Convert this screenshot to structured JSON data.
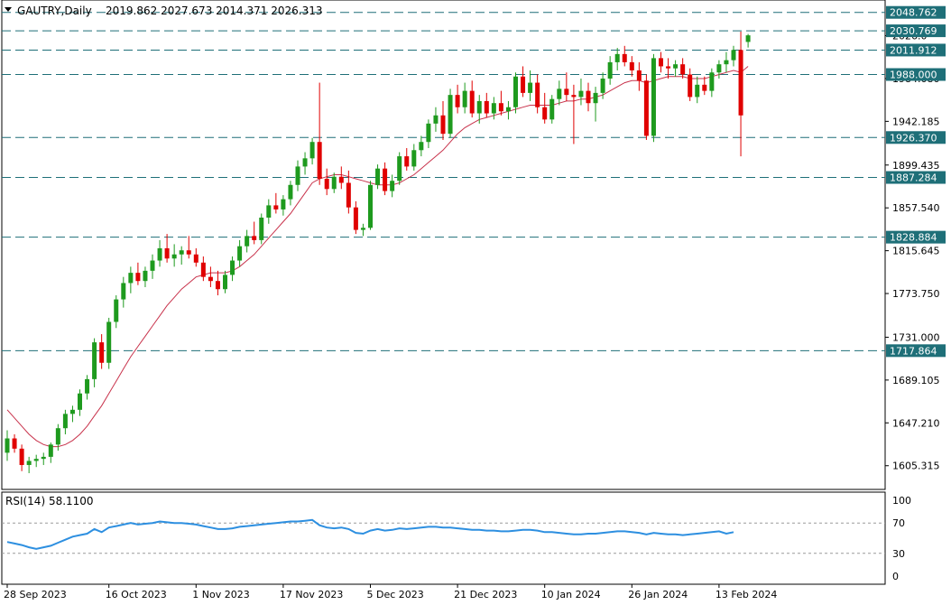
{
  "header": {
    "symbol_label": "GAUTRY,Daily",
    "ohlc": "2019.862 2027.673 2014.371 2026.313",
    "menu_icon": "triangle-down-icon"
  },
  "rsi_label": "RSI(14) 58.1100",
  "colors": {
    "bull": "#1e9a1e",
    "bear": "#e00000",
    "ma": "#c8324b",
    "rsi": "#2d8fe0",
    "level_line": "#1e6f78",
    "level_box": "#1e6f78"
  },
  "chart_data": [
    {
      "type": "candlestick",
      "title": "GAUTRY,Daily",
      "ylim": [
        1583,
        2060
      ],
      "price_ticks": [
        "1605.315",
        "1647.210",
        "1689.105",
        "1731.000",
        "1773.750",
        "1815.645",
        "1857.540",
        "1899.435",
        "1942.185",
        "1984.080",
        "2026.0"
      ],
      "date_labels": [
        {
          "i": 0,
          "label": "28 Sep 2023"
        },
        {
          "i": 14,
          "label": "16 Oct 2023"
        },
        {
          "i": 26,
          "label": "1 Nov 2023"
        },
        {
          "i": 38,
          "label": "17 Nov 2023"
        },
        {
          "i": 50,
          "label": "5 Dec 2023"
        },
        {
          "i": 62,
          "label": "21 Dec 2023"
        },
        {
          "i": 74,
          "label": "10 Jan 2024"
        },
        {
          "i": 86,
          "label": "26 Jan 2024"
        },
        {
          "i": 98,
          "label": "13 Feb 2024"
        }
      ],
      "levels": [
        "2048.762",
        "2030.769",
        "2011.912",
        "1988.000",
        "1926.370",
        "1887.284",
        "1828.884",
        "1717.864"
      ],
      "candles": [
        [
          1618,
          1640,
          1610,
          1632
        ],
        [
          1632,
          1636,
          1618,
          1622
        ],
        [
          1622,
          1626,
          1600,
          1606
        ],
        [
          1606,
          1614,
          1598,
          1610
        ],
        [
          1610,
          1616,
          1604,
          1612
        ],
        [
          1612,
          1618,
          1606,
          1614
        ],
        [
          1614,
          1628,
          1608,
          1626
        ],
        [
          1626,
          1646,
          1620,
          1642
        ],
        [
          1642,
          1660,
          1636,
          1656
        ],
        [
          1656,
          1664,
          1648,
          1660
        ],
        [
          1660,
          1680,
          1654,
          1676
        ],
        [
          1676,
          1694,
          1670,
          1690
        ],
        [
          1690,
          1730,
          1682,
          1726
        ],
        [
          1726,
          1734,
          1700,
          1706
        ],
        [
          1706,
          1750,
          1700,
          1746
        ],
        [
          1746,
          1772,
          1740,
          1768
        ],
        [
          1768,
          1790,
          1760,
          1784
        ],
        [
          1784,
          1800,
          1774,
          1794
        ],
        [
          1794,
          1804,
          1782,
          1786
        ],
        [
          1786,
          1800,
          1780,
          1796
        ],
        [
          1796,
          1812,
          1788,
          1806
        ],
        [
          1806,
          1826,
          1800,
          1818
        ],
        [
          1818,
          1832,
          1804,
          1808
        ],
        [
          1808,
          1822,
          1800,
          1812
        ],
        [
          1812,
          1820,
          1802,
          1816
        ],
        [
          1816,
          1830,
          1808,
          1812
        ],
        [
          1812,
          1818,
          1800,
          1804
        ],
        [
          1804,
          1810,
          1786,
          1790
        ],
        [
          1790,
          1800,
          1780,
          1786
        ],
        [
          1786,
          1796,
          1772,
          1778
        ],
        [
          1778,
          1796,
          1774,
          1792
        ],
        [
          1792,
          1810,
          1786,
          1806
        ],
        [
          1806,
          1826,
          1800,
          1820
        ],
        [
          1820,
          1836,
          1814,
          1830
        ],
        [
          1830,
          1844,
          1822,
          1826
        ],
        [
          1826,
          1852,
          1822,
          1848
        ],
        [
          1848,
          1866,
          1842,
          1860
        ],
        [
          1860,
          1872,
          1852,
          1856
        ],
        [
          1856,
          1870,
          1850,
          1866
        ],
        [
          1866,
          1884,
          1860,
          1880
        ],
        [
          1880,
          1904,
          1874,
          1898
        ],
        [
          1898,
          1912,
          1890,
          1906
        ],
        [
          1906,
          1926,
          1900,
          1922
        ],
        [
          1922,
          1980,
          1880,
          1886
        ],
        [
          1886,
          1896,
          1870,
          1876
        ],
        [
          1876,
          1892,
          1872,
          1888
        ],
        [
          1888,
          1898,
          1876,
          1882
        ],
        [
          1882,
          1894,
          1852,
          1858
        ],
        [
          1858,
          1864,
          1832,
          1836
        ],
        [
          1836,
          1842,
          1830,
          1838
        ],
        [
          1838,
          1884,
          1836,
          1880
        ],
        [
          1880,
          1900,
          1876,
          1896
        ],
        [
          1896,
          1902,
          1870,
          1874
        ],
        [
          1874,
          1890,
          1868,
          1884
        ],
        [
          1884,
          1912,
          1880,
          1908
        ],
        [
          1908,
          1916,
          1894,
          1898
        ],
        [
          1898,
          1920,
          1894,
          1914
        ],
        [
          1914,
          1928,
          1908,
          1922
        ],
        [
          1922,
          1944,
          1916,
          1940
        ],
        [
          1940,
          1956,
          1932,
          1948
        ],
        [
          1948,
          1962,
          1924,
          1930
        ],
        [
          1930,
          1974,
          1926,
          1968
        ],
        [
          1968,
          1978,
          1950,
          1956
        ],
        [
          1956,
          1980,
          1950,
          1972
        ],
        [
          1972,
          1982,
          1946,
          1950
        ],
        [
          1950,
          1968,
          1940,
          1962
        ],
        [
          1962,
          1970,
          1946,
          1950
        ],
        [
          1950,
          1966,
          1944,
          1960
        ],
        [
          1960,
          1972,
          1948,
          1952
        ],
        [
          1952,
          1962,
          1944,
          1956
        ],
        [
          1956,
          1990,
          1950,
          1986
        ],
        [
          1986,
          1996,
          1966,
          1970
        ],
        [
          1970,
          1992,
          1962,
          1980
        ],
        [
          1980,
          1988,
          1950,
          1956
        ],
        [
          1956,
          1970,
          1940,
          1944
        ],
        [
          1944,
          1968,
          1940,
          1964
        ],
        [
          1964,
          1982,
          1958,
          1974
        ],
        [
          1974,
          1990,
          1962,
          1968
        ],
        [
          1968,
          1978,
          1920,
          1966
        ],
        [
          1966,
          1984,
          1958,
          1972
        ],
        [
          1972,
          1980,
          1952,
          1960
        ],
        [
          1960,
          1976,
          1942,
          1970
        ],
        [
          1970,
          1990,
          1964,
          1984
        ],
        [
          1984,
          2006,
          1978,
          2000
        ],
        [
          2000,
          2014,
          1992,
          2008
        ],
        [
          2008,
          2016,
          1996,
          2000
        ],
        [
          2000,
          2006,
          1986,
          1992
        ],
        [
          1992,
          2000,
          1972,
          1982
        ],
        [
          1982,
          1988,
          1924,
          1928
        ],
        [
          1928,
          2008,
          1922,
          2004
        ],
        [
          2004,
          2010,
          1990,
          1996
        ],
        [
          1996,
          2004,
          1984,
          1994
        ],
        [
          1994,
          2002,
          1986,
          1998
        ],
        [
          1998,
          2004,
          1984,
          1988
        ],
        [
          1988,
          1994,
          1962,
          1966
        ],
        [
          1966,
          1986,
          1960,
          1978
        ],
        [
          1978,
          1986,
          1968,
          1972
        ],
        [
          1972,
          1994,
          1966,
          1990
        ],
        [
          1990,
          2002,
          1984,
          1998
        ],
        [
          1998,
          2010,
          1990,
          2002
        ],
        [
          2002,
          2016,
          1996,
          2012
        ],
        [
          2012,
          2030,
          1908,
          1948
        ],
        [
          2019.862,
          2027.673,
          2014.371,
          2026.313
        ]
      ],
      "ma": [
        1660,
        1652,
        1644,
        1636,
        1630,
        1626,
        1624,
        1624,
        1626,
        1630,
        1636,
        1644,
        1654,
        1664,
        1676,
        1688,
        1700,
        1712,
        1722,
        1732,
        1742,
        1752,
        1762,
        1770,
        1778,
        1784,
        1790,
        1792,
        1794,
        1794,
        1794,
        1796,
        1800,
        1806,
        1812,
        1820,
        1828,
        1836,
        1844,
        1852,
        1862,
        1872,
        1882,
        1886,
        1888,
        1890,
        1890,
        1888,
        1886,
        1884,
        1882,
        1880,
        1880,
        1880,
        1882,
        1886,
        1890,
        1896,
        1902,
        1908,
        1914,
        1922,
        1930,
        1936,
        1940,
        1944,
        1946,
        1948,
        1950,
        1952,
        1954,
        1956,
        1958,
        1958,
        1958,
        1958,
        1960,
        1962,
        1962,
        1964,
        1964,
        1966,
        1968,
        1972,
        1976,
        1980,
        1982,
        1982,
        1980,
        1982,
        1984,
        1986,
        1986,
        1986,
        1984,
        1984,
        1984,
        1986,
        1988,
        1990,
        1992,
        1990,
        1996
      ]
    },
    {
      "type": "line",
      "title": "RSI(14) 58.1100",
      "ylim": [
        0,
        100
      ],
      "ticks": [
        "100",
        "70",
        "30",
        "0"
      ],
      "levels": [
        70,
        30
      ],
      "values": [
        45,
        43,
        41,
        38,
        36,
        38,
        40,
        44,
        48,
        52,
        54,
        56,
        62,
        58,
        64,
        66,
        68,
        70,
        68,
        69,
        70,
        72,
        71,
        70,
        70,
        69,
        68,
        66,
        64,
        62,
        62,
        63,
        65,
        66,
        67,
        68,
        69,
        70,
        71,
        72,
        72,
        73,
        74,
        67,
        64,
        63,
        64,
        62,
        57,
        56,
        60,
        62,
        60,
        61,
        63,
        62,
        63,
        64,
        65,
        65,
        64,
        64,
        63,
        62,
        61,
        61,
        60,
        60,
        59,
        59,
        60,
        61,
        61,
        60,
        58,
        58,
        57,
        56,
        55,
        55,
        56,
        56,
        57,
        58,
        59,
        59,
        58,
        57,
        55,
        57,
        56,
        55,
        55,
        54,
        55,
        56,
        57,
        58,
        59,
        56,
        58
      ]
    }
  ]
}
